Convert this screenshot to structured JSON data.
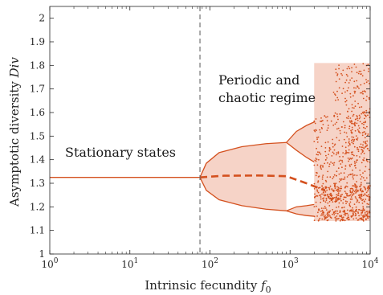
{
  "chart_data": {
    "type": "scatter",
    "xlabel_text": "Intrinsic fecundity ",
    "xlabel_var": "f",
    "xlabel_sub": "0",
    "ylabel_text": "Asymptotic diversity ",
    "ylabel_var": "Div",
    "x_scale": "log",
    "xlim": [
      1,
      10000
    ],
    "ylim": [
      1,
      2.05
    ],
    "x_ticks": [
      {
        "base": "10",
        "exp": "0"
      },
      {
        "base": "10",
        "exp": "1"
      },
      {
        "base": "10",
        "exp": "2"
      },
      {
        "base": "10",
        "exp": "3"
      },
      {
        "base": "10",
        "exp": "4"
      }
    ],
    "x_tick_values": [
      1,
      10,
      100,
      1000,
      10000
    ],
    "y_ticks": [
      "1",
      "1.1",
      "1.2",
      "1.3",
      "1.4",
      "1.5",
      "1.6",
      "1.7",
      "1.8",
      "1.9",
      "2"
    ],
    "y_tick_values": [
      1,
      1.1,
      1.2,
      1.3,
      1.4,
      1.5,
      1.6,
      1.7,
      1.8,
      1.9,
      2
    ],
    "annotations": {
      "stationary": "Stationary states",
      "periodic_line1": "Periodic and",
      "periodic_line2": "chaotic regime"
    },
    "bifurcation_f0": 75,
    "stationary_value": 1.325,
    "series": [
      {
        "role": "stable-branch",
        "x": [
          1,
          75
        ],
        "y": [
          1.325,
          1.325
        ]
      },
      {
        "role": "mean-dashed",
        "x": [
          75,
          150,
          400,
          900,
          1600,
          2700
        ],
        "y": [
          1.325,
          1.332,
          1.333,
          1.33,
          1.3,
          1.27
        ]
      },
      {
        "role": "upper-envelope",
        "x": [
          75,
          90,
          130,
          250,
          500,
          900
        ],
        "y": [
          1.325,
          1.385,
          1.43,
          1.455,
          1.468,
          1.473
        ]
      },
      {
        "role": "lower-envelope",
        "x": [
          75,
          90,
          130,
          250,
          500,
          900
        ],
        "y": [
          1.325,
          1.27,
          1.23,
          1.205,
          1.19,
          1.183
        ]
      },
      {
        "role": "period-doubling-upper-a",
        "x": [
          900,
          1200,
          1600,
          2000
        ],
        "y": [
          1.473,
          1.52,
          1.545,
          1.56
        ]
      },
      {
        "role": "period-doubling-upper-b",
        "x": [
          900,
          1200,
          1600,
          2000
        ],
        "y": [
          1.473,
          1.44,
          1.41,
          1.39
        ]
      },
      {
        "role": "period-doubling-lower-a",
        "x": [
          900,
          1200,
          1600,
          2000
        ],
        "y": [
          1.183,
          1.2,
          1.205,
          1.21
        ]
      },
      {
        "role": "period-doubling-lower-b",
        "x": [
          900,
          1200,
          1600,
          2000
        ],
        "y": [
          1.183,
          1.17,
          1.163,
          1.16
        ]
      }
    ],
    "chaos_region": {
      "x_range": [
        2000,
        10000
      ],
      "y_range": [
        1.14,
        1.81
      ]
    },
    "colors": {
      "series": "#d4511f",
      "fill": "#f6d3c7",
      "dashed_vline": "#666666",
      "axis": "#262626"
    },
    "grid": false
  }
}
